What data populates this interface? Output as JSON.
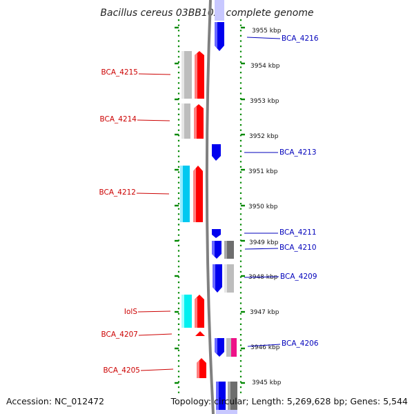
{
  "title": "Bacillus cereus 03BB102, complete genome",
  "accession": "Accession: NC_012472",
  "topology": "Topology: circular; Length: 5,269,628 bp; Genes: 5,544",
  "colors": {
    "left_label": "#cc0000",
    "right_label": "#0000bb",
    "red": "#ff0000",
    "blue": "#0000ee",
    "cyan": "#00c8f0",
    "cyan_bright": "#00f0f0",
    "gray_light": "#bdbdbd",
    "gray_dark": "#6e6e6e",
    "magenta": "#ee1188",
    "ruler": "#008800",
    "backbone": "#808080"
  },
  "kbp_ticks": [
    "3955 kbp",
    "3954 kbp",
    "3953 kbp",
    "3952 kbp",
    "3951 kbp",
    "3950 kbp",
    "3949 kbp",
    "3948 kbp",
    "3947 kbp",
    "3946 kbp",
    "3945 kbp"
  ],
  "left_genes": [
    "BCA_4215",
    "BCA_4214",
    "BCA_4212",
    "IolS",
    "BCA_4207",
    "BCA_4205"
  ],
  "right_genes": [
    "BCA_4216",
    "BCA_4213",
    "BCA_4211",
    "BCA_4210",
    "BCA_4209",
    "BCA_4206"
  ]
}
